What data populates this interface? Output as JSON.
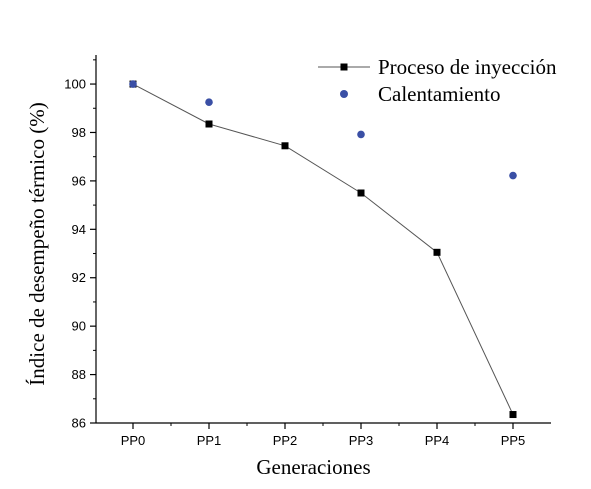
{
  "chart_data": {
    "type": "scatter",
    "categories": [
      "PP0",
      "PP1",
      "PP2",
      "PP3",
      "PP4",
      "PP5"
    ],
    "xlabel": "Generaciones",
    "ylabel": "Índice de desempeño térmico (%)",
    "ylim": [
      86,
      101.2
    ],
    "yticks": [
      86,
      88,
      90,
      92,
      94,
      96,
      98,
      100
    ],
    "grid": false,
    "legend_position": "top-right",
    "series": [
      {
        "name": "Proceso de inyección",
        "marker": "square",
        "connected": true,
        "color": "#000000",
        "line_color": "#555555",
        "values": [
          100.0,
          98.35,
          97.45,
          95.5,
          93.05,
          86.35
        ]
      },
      {
        "name": "Calentamiento",
        "marker": "circle",
        "connected": false,
        "color": "#3a4fa5",
        "values": [
          100.0,
          99.25,
          null,
          97.92,
          null,
          96.22
        ]
      }
    ]
  }
}
